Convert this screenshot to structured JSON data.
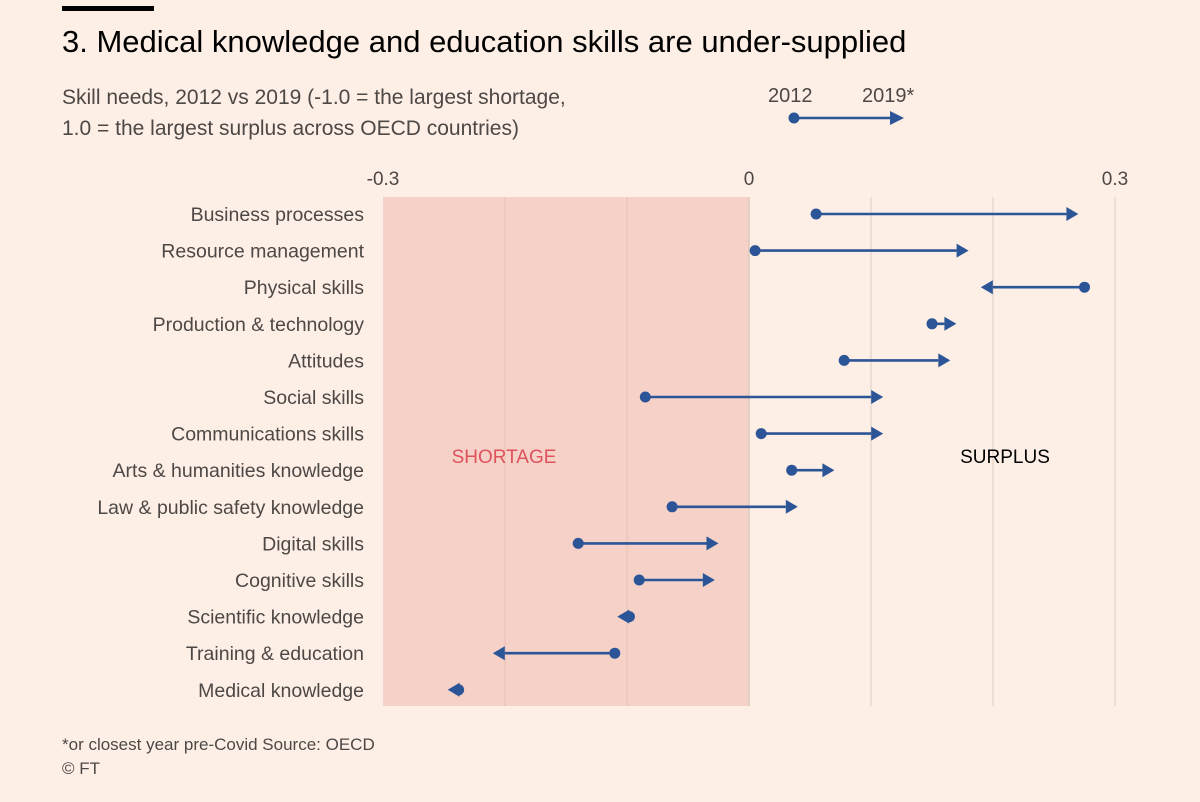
{
  "header": {
    "title": "3. Medical knowledge and education skills are under-supplied",
    "subtitle_line1": "Skill needs, 2012 vs 2019 (-1.0 = the largest shortage,",
    "subtitle_line2": "1.0 = the largest surplus across OECD countries)"
  },
  "legend": {
    "from_label": "2012",
    "to_label": "2019*"
  },
  "footer": {
    "note": "*or closest year pre-Covid   Source: OECD",
    "credit": "© FT"
  },
  "colors": {
    "background": "#fdefe5",
    "shortage_band": "#f5d1c8",
    "arrow": "#2c5597",
    "shortage_text": "#e0525c",
    "surplus_text": "#000000"
  },
  "chart_data": {
    "type": "dumbbell-arrow",
    "xlim": [
      -0.3,
      0.3
    ],
    "x_ticks": [
      {
        "value": -0.3,
        "label": "-0.3"
      },
      {
        "value": 0,
        "label": "0"
      },
      {
        "value": 0.3,
        "label": "0.3"
      }
    ],
    "shortage_label": "SHORTAGE",
    "surplus_label": "SURPLUS",
    "series": [
      {
        "name": "2012"
      },
      {
        "name": "2019*"
      }
    ],
    "rows": [
      {
        "category": "Business processes",
        "y2012": 0.055,
        "y2019": 0.27
      },
      {
        "category": "Resource management",
        "y2012": 0.005,
        "y2019": 0.18
      },
      {
        "category": "Physical skills",
        "y2012": 0.275,
        "y2019": 0.19
      },
      {
        "category": "Production & technology",
        "y2012": 0.15,
        "y2019": 0.17
      },
      {
        "category": "Attitudes",
        "y2012": 0.078,
        "y2019": 0.165
      },
      {
        "category": "Social skills",
        "y2012": -0.085,
        "y2019": 0.11
      },
      {
        "category": "Communications skills",
        "y2012": 0.01,
        "y2019": 0.11
      },
      {
        "category": "Arts & humanities knowledge",
        "y2012": 0.035,
        "y2019": 0.07
      },
      {
        "category": "Law & public safety knowledge",
        "y2012": -0.063,
        "y2019": 0.04
      },
      {
        "category": "Digital skills",
        "y2012": -0.14,
        "y2019": -0.025
      },
      {
        "category": "Cognitive skills",
        "y2012": -0.09,
        "y2019": -0.028
      },
      {
        "category": "Scientific knowledge",
        "y2012": -0.098,
        "y2019": -0.108
      },
      {
        "category": "Training & education",
        "y2012": -0.11,
        "y2019": -0.21
      },
      {
        "category": "Medical knowledge",
        "y2012": -0.238,
        "y2019": -0.247
      }
    ]
  }
}
